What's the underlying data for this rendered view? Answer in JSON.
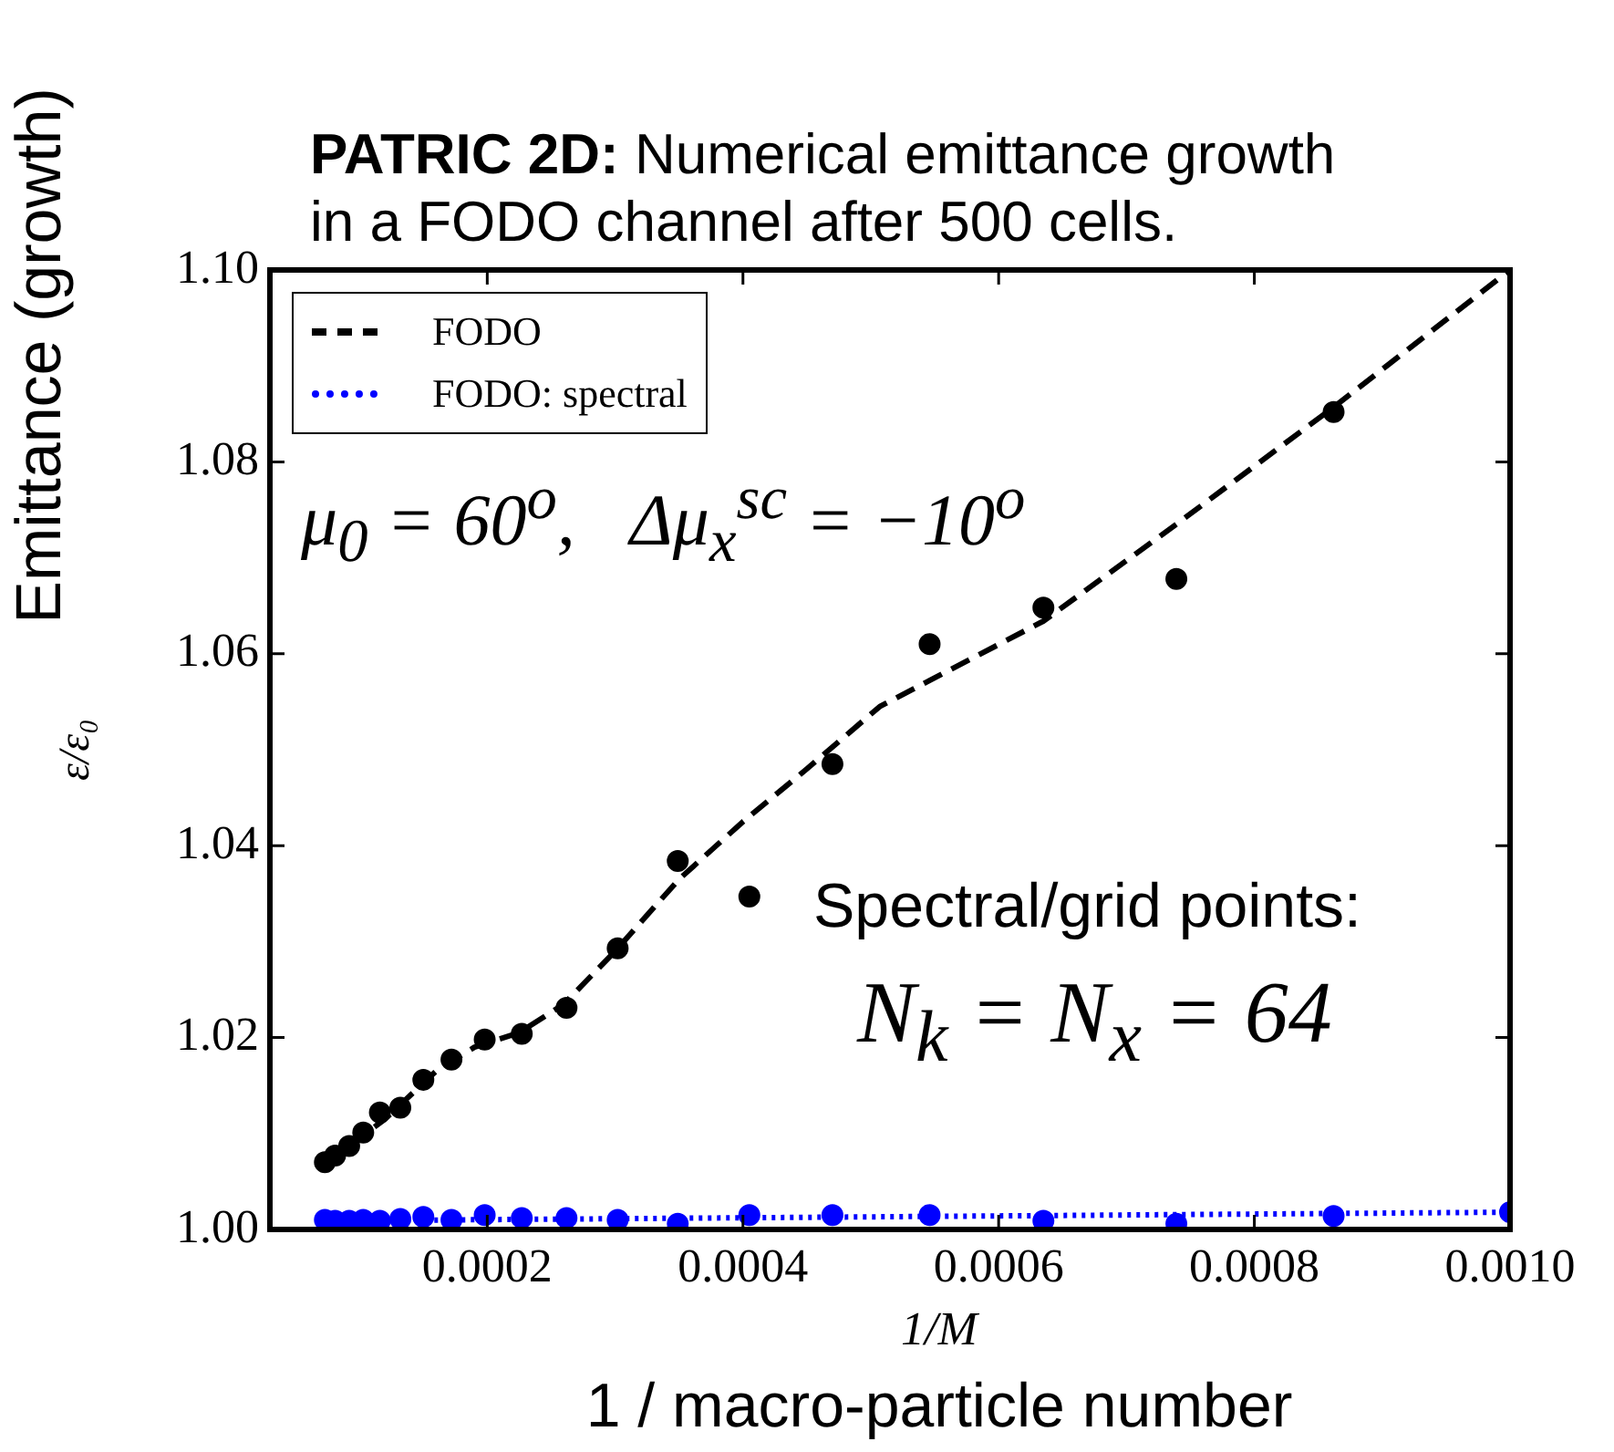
{
  "chart_data": {
    "type": "scatter",
    "title": "PATRIC 2D: Numerical emittance growth in a FODO channel after 500 cells.",
    "xlabel": "1/M",
    "ylabel": "ε/ε₀",
    "annotations": [
      "μ$_{0}$ = 60$^{o}$,   Δμ$_{x}$$^{sc}$ = −10$^{o}$",
      "Spectral/grid points:",
      "N$_{k}$ = N$_{x}$ = 64",
      "Emittance (growth)",
      "1 / macro-particle number"
    ],
    "xlim": [
      3e-05,
      0.001
    ],
    "xticks": [
      0.0002,
      0.0004,
      0.0006,
      0.0008,
      {
        "value": 0.001,
        "label": "0.0010"
      }
    ],
    "ylim": [
      1.0,
      1.1
    ],
    "yticks": [
      {
        "value": 1.0,
        "label": "1.00"
      },
      {
        "value": 1.02,
        "label": "1.02"
      },
      {
        "value": 1.04,
        "label": "1.04"
      },
      {
        "value": 1.06,
        "label": "1.06"
      },
      {
        "value": 1.08,
        "label": "1.08"
      },
      {
        "value": 1.1,
        "label": "1.10"
      }
    ],
    "grid": false,
    "legend": "top left",
    "series": [
      {
        "type": "scatter",
        "color": "#000000",
        "marker": "circle",
        "x": [
          7.3e-05,
          8.1e-05,
          9.2e-05,
          0.000103,
          0.000116,
          0.000132,
          0.00015,
          0.000172,
          0.000198,
          0.000227,
          0.000262,
          0.000302,
          0.000349,
          0.000405,
          0.00047,
          0.000546,
          0.000635,
          0.000739,
          0.000862
        ],
        "values": [
          1.007,
          1.0077,
          1.0087,
          1.0101,
          1.0122,
          1.0127,
          1.0156,
          1.0177,
          1.0198,
          1.0204,
          1.0231,
          1.0293,
          1.0384,
          1.0347,
          1.0485,
          1.061,
          1.0648,
          1.0678,
          1.0852
        ]
      },
      {
        "type": "line",
        "name": "FODO",
        "color": "#000000",
        "marker": "none",
        "line_style": "dashed",
        "x": [
          7.3e-05,
          0.00012,
          0.00016,
          0.00019,
          0.000225,
          0.00026,
          0.0003,
          0.00035,
          0.0004,
          0.00045,
          0.000507,
          0.000635,
          0.000739,
          0.000862,
          0.001
        ],
        "values": [
          1.0068,
          1.0115,
          1.0165,
          1.019,
          1.0205,
          1.0235,
          1.029,
          1.0365,
          1.0425,
          1.048,
          1.0545,
          1.0634,
          1.0735,
          1.0857,
          1.1
        ]
      },
      {
        "type": "scatter",
        "color": "#0000ff",
        "marker": "circle",
        "x": [
          7.3e-05,
          8.1e-05,
          9.2e-05,
          0.000103,
          0.000116,
          0.000132,
          0.00015,
          0.000172,
          0.000198,
          0.000227,
          0.000262,
          0.000302,
          0.000349,
          0.000405,
          0.00047,
          0.000546,
          0.000635,
          0.000739,
          0.000862,
          0.001
        ],
        "values": [
          1.001,
          1.0009,
          1.0009,
          1.001,
          1.0009,
          1.0011,
          1.0013,
          1.001,
          1.0015,
          1.0012,
          1.0012,
          1.001,
          1.0006,
          1.0015,
          1.0015,
          1.0015,
          1.0009,
          1.0006,
          1.0014,
          1.0018
        ]
      },
      {
        "type": "line",
        "name": "FODO: spectral",
        "color": "#0000ff",
        "marker": "none",
        "line_style": "dotted",
        "x": [
          7.3e-05,
          0.001
        ],
        "values": [
          1.0009,
          1.0018
        ]
      }
    ]
  }
}
